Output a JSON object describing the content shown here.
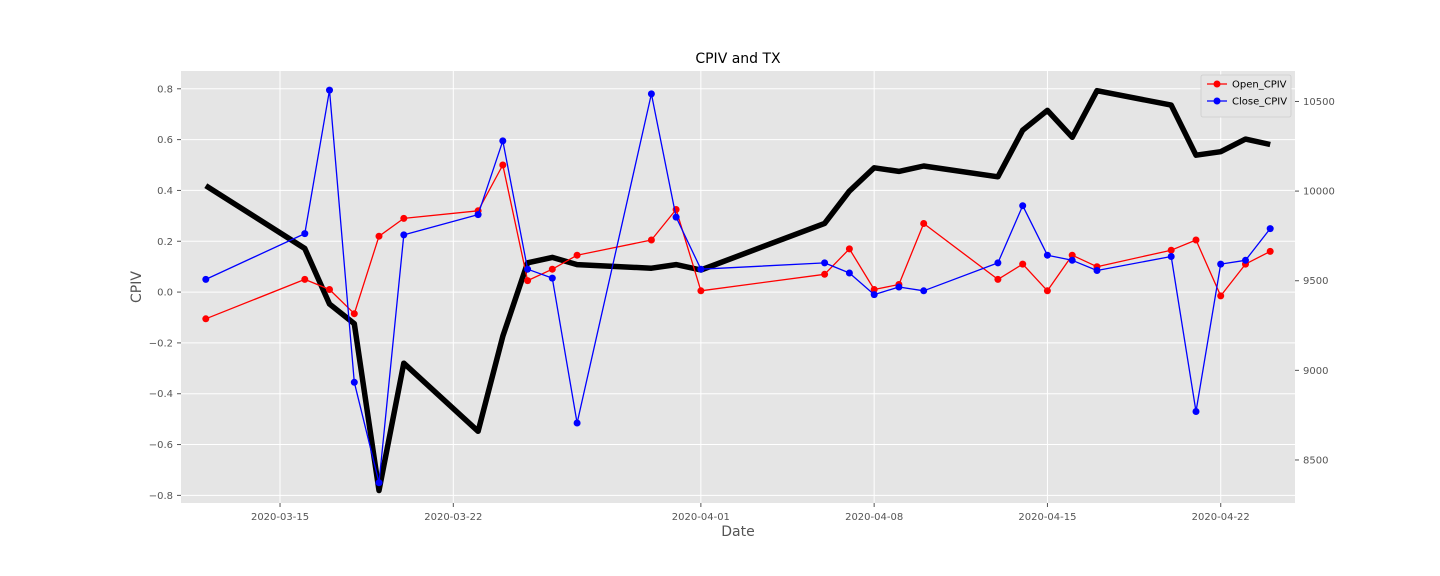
{
  "chart_data": {
    "type": "line",
    "title": "CPIV and TX",
    "xlabel": "Date",
    "ylabel": "CPIV",
    "y2label": "",
    "x_tick_labels": [
      "2020-03-15",
      "2020-03-22",
      "2020-04-01",
      "2020-04-08",
      "2020-04-15",
      "2020-04-22"
    ],
    "x_ticks": [
      "2020-03-15",
      "2020-03-22",
      "2020-04-01",
      "2020-04-08",
      "2020-04-15",
      "2020-04-22"
    ],
    "xlim": [
      "2020-03-11",
      "2020-04-25"
    ],
    "ylim": [
      -0.83,
      0.87
    ],
    "y_ticks": [
      0.8,
      0.6,
      0.4,
      0.2,
      0.0,
      -0.2,
      -0.4,
      -0.6,
      -0.8
    ],
    "y_tick_labels": [
      "0.8",
      "0.6",
      "0.4",
      "0.2",
      "0.0",
      "−0.2",
      "−0.4",
      "−0.6",
      "−0.8"
    ],
    "y2lim": [
      8260,
      10670
    ],
    "y2_ticks": [
      10500,
      10000,
      9500,
      9000,
      8500
    ],
    "y2_tick_labels": [
      "10500",
      "10000",
      "9500",
      "9000",
      "8500"
    ],
    "grid": true,
    "legend_position": "top-right",
    "x": [
      "2020-03-12",
      "2020-03-16",
      "2020-03-17",
      "2020-03-18",
      "2020-03-19",
      "2020-03-20",
      "2020-03-23",
      "2020-03-24",
      "2020-03-25",
      "2020-03-26",
      "2020-03-27",
      "2020-03-30",
      "2020-03-31",
      "2020-04-01",
      "2020-04-06",
      "2020-04-07",
      "2020-04-08",
      "2020-04-09",
      "2020-04-10",
      "2020-04-13",
      "2020-04-14",
      "2020-04-15",
      "2020-04-16",
      "2020-04-17",
      "2020-04-20",
      "2020-04-21",
      "2020-04-22",
      "2020-04-23",
      "2020-04-24"
    ],
    "series": [
      {
        "name": "Open_CPIV",
        "color": "#ff0000",
        "axis": "left",
        "marker": "circle",
        "values": [
          -0.105,
          0.05,
          0.01,
          -0.085,
          0.22,
          0.29,
          0.32,
          0.5,
          0.045,
          0.09,
          0.145,
          0.205,
          0.325,
          0.005,
          0.07,
          0.17,
          0.01,
          0.03,
          0.27,
          0.05,
          0.11,
          0.005,
          0.145,
          0.1,
          0.165,
          0.205,
          -0.015,
          0.11,
          0.16
        ]
      },
      {
        "name": "Close_CPIV",
        "color": "#0000ff",
        "axis": "left",
        "marker": "circle",
        "values": [
          0.05,
          0.23,
          0.795,
          -0.355,
          -0.75,
          0.225,
          0.305,
          0.595,
          0.09,
          0.055,
          -0.515,
          0.78,
          0.295,
          0.09,
          0.115,
          0.075,
          -0.01,
          0.02,
          0.005,
          0.115,
          0.34,
          0.145,
          0.125,
          0.085,
          0.14,
          -0.47,
          0.11,
          0.125,
          0.25
        ]
      },
      {
        "color": "#000000",
        "axis": "right",
        "marker": "none",
        "values": [
          10030,
          9680,
          9370,
          9260,
          8330,
          9040,
          8660,
          9190,
          9600,
          9630,
          9590,
          9570,
          9590,
          9560,
          9820,
          10000,
          10130,
          10110,
          10140,
          10080,
          10340,
          10450,
          10300,
          10560,
          10480,
          10200,
          10220,
          10290,
          10260
        ]
      }
    ]
  }
}
